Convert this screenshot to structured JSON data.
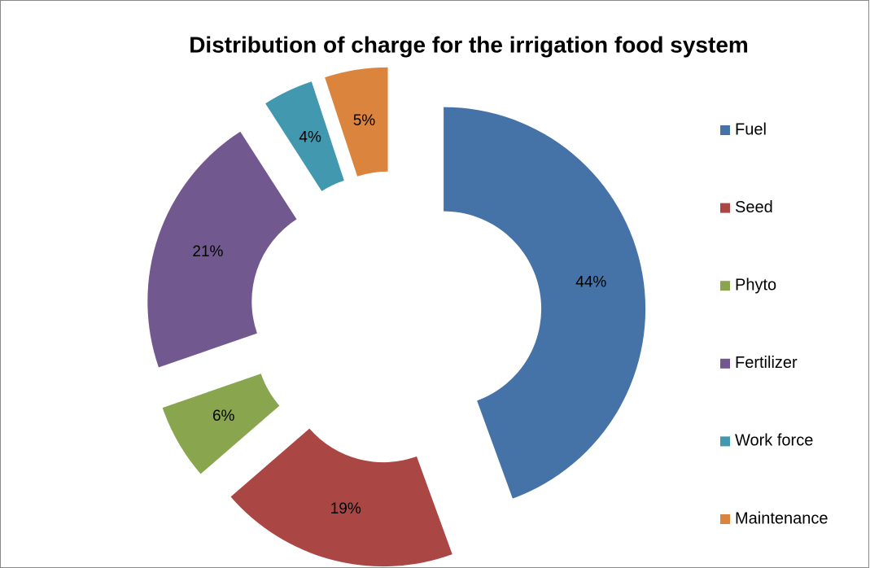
{
  "chart_data": {
    "type": "donut",
    "title": "Distribution of charge for the irrigation food system",
    "categories": [
      "Fuel",
      "Seed",
      "Phyto",
      "Fertilizer",
      "Work force",
      "Maintenance"
    ],
    "values": [
      44,
      19,
      6,
      21,
      4,
      5
    ],
    "value_labels": [
      "44%",
      "19%",
      "6%",
      "21%",
      "4%",
      "5%"
    ],
    "colors": [
      "#4572a7",
      "#aa4643",
      "#89a54e",
      "#71588f",
      "#4198af",
      "#db843d"
    ],
    "legend": "right"
  }
}
